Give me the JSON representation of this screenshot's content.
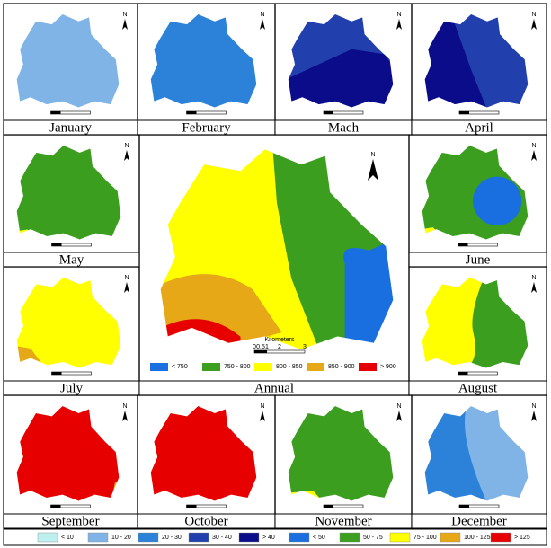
{
  "north_label": "N",
  "panels": [
    {
      "label": "January",
      "colors": [
        "#80b4e6"
      ]
    },
    {
      "label": "February",
      "colors": [
        "#2b82d8"
      ]
    },
    {
      "label": "Mach",
      "colors": [
        "#2140ad",
        "#0b0c8a"
      ]
    },
    {
      "label": "April",
      "colors": [
        "#2140ad",
        "#0b0c8a"
      ]
    },
    {
      "label": "May",
      "colors": [
        "#3c9e1e",
        "#ffff00"
      ]
    },
    {
      "label": "June",
      "colors": [
        "#3c9e1e",
        "#1a6fe0",
        "#ffff00"
      ]
    },
    {
      "label": "July",
      "colors": [
        "#ffff00",
        "#e6a817"
      ]
    },
    {
      "label": "Annual",
      "colors": [
        "#3c9e1e",
        "#ffff00",
        "#e6a817",
        "#e60000",
        "#1a6fe0"
      ]
    },
    {
      "label": "August",
      "colors": [
        "#3c9e1e",
        "#ffff00"
      ]
    },
    {
      "label": "September",
      "colors": [
        "#e60000",
        "#e6a817"
      ]
    },
    {
      "label": "October",
      "colors": [
        "#e60000"
      ]
    },
    {
      "label": "November",
      "colors": [
        "#3c9e1e",
        "#ffff00"
      ]
    },
    {
      "label": "December",
      "colors": [
        "#80b4e6",
        "#2b82d8"
      ]
    }
  ],
  "annual_scale": {
    "title": "Kilometers",
    "ticks": [
      "0",
      "0.5",
      "1",
      "2",
      "3"
    ]
  },
  "annual_legend": [
    {
      "label": "< 750",
      "color": "#1a6fe0"
    },
    {
      "label": "750 - 800",
      "color": "#3c9e1e"
    },
    {
      "label": "800 - 850",
      "color": "#ffff00"
    },
    {
      "label": "850 - 900",
      "color": "#e6a817"
    },
    {
      "label": "> 900",
      "color": "#e60000"
    }
  ],
  "legend": [
    {
      "label": "< 10",
      "color": "#bff0f0"
    },
    {
      "label": "10 - 20",
      "color": "#80b4e6"
    },
    {
      "label": "20 - 30",
      "color": "#2b82d8"
    },
    {
      "label": "30 - 40",
      "color": "#2140ad"
    },
    {
      "label": "> 40",
      "color": "#0b0c8a"
    },
    {
      "label": "< 50",
      "color": "#1a6fe0"
    },
    {
      "label": "50 - 75",
      "color": "#3c9e1e"
    },
    {
      "label": "75 - 100",
      "color": "#ffff00"
    },
    {
      "label": "100 - 125",
      "color": "#e6a817"
    },
    {
      "label": "> 125",
      "color": "#e60000"
    }
  ]
}
